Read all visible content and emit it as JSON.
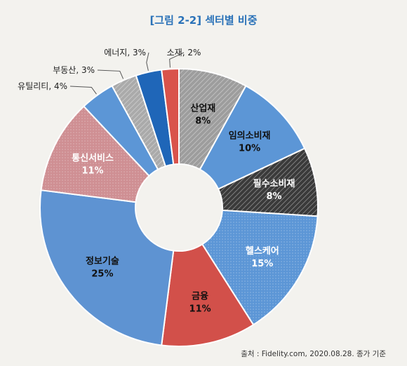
{
  "chart_data": {
    "type": "pie",
    "title": "[그림 2-2] 섹터별 비중",
    "source": "출처 : Fidelity.com, 2020.08.28. 종가 기준",
    "slices": [
      {
        "label": "산업재",
        "value": 8,
        "value_label": "8%",
        "color": "#9d9d9d",
        "hatched": true
      },
      {
        "label": "임의소비재",
        "value": 10,
        "value_label": "10%",
        "color": "#5c96d6"
      },
      {
        "label": "필수소비재",
        "value": 8,
        "value_label": "8%",
        "color": "#3a3a3a",
        "hatched": true
      },
      {
        "label": "헬스케어",
        "value": 15,
        "value_label": "15%",
        "color": "#5c96d6",
        "dotted": true
      },
      {
        "label": "금융",
        "value": 11,
        "value_label": "11%",
        "color": "#d2504a"
      },
      {
        "label": "정보기술",
        "value": 25,
        "value_label": "25%",
        "color": "#5e93d2"
      },
      {
        "label": "통신서비스",
        "value": 11,
        "value_label": "11%",
        "color": "#cf8f93",
        "dotted": true
      },
      {
        "label": "유틸리티",
        "value": 4,
        "value_label": "유틸리티, 4%",
        "color": "#5c96d6",
        "outside": true
      },
      {
        "label": "부동산",
        "value": 3,
        "value_label": "부동산, 3%",
        "color": "#aaaaaa",
        "outside": true,
        "hatched": true
      },
      {
        "label": "에너지",
        "value": 3,
        "value_label": "에너지, 3%",
        "color": "#1f66b8",
        "outside": true
      },
      {
        "label": "소재",
        "value": 2,
        "value_label": "소재, 2%",
        "color": "#d9534b",
        "outside": true
      }
    ]
  }
}
